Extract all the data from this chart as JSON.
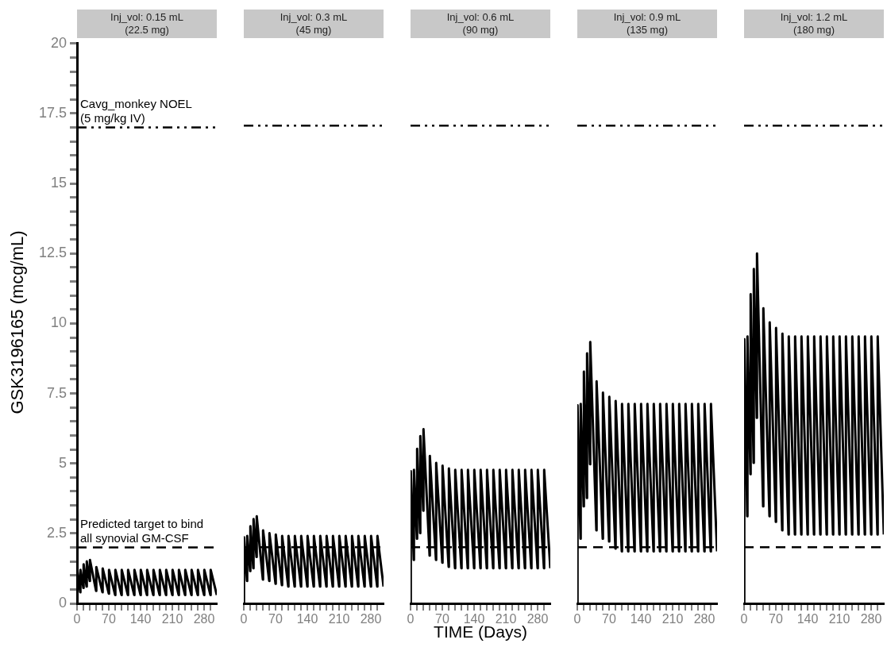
{
  "chart_data": [
    {
      "type": "line",
      "title": "Inj_vol: 0.15 mL\n(22.5 mg)",
      "ylabel": "GSK3196165 (mcg/mL)",
      "xlim": [
        0,
        308
      ],
      "ylim": [
        0,
        20
      ],
      "xticks": [
        0,
        {
          "value": 14,
          "label": null
        },
        {
          "value": 28,
          "label": null
        },
        {
          "value": 42,
          "label": null
        },
        {
          "value": 56,
          "label": null
        },
        70,
        {
          "value": 84,
          "label": null
        },
        {
          "value": 98,
          "label": null
        },
        {
          "value": 112,
          "label": null
        },
        {
          "value": 126,
          "label": null
        },
        140,
        {
          "value": 154,
          "label": null
        },
        {
          "value": 168,
          "label": null
        },
        {
          "value": 182,
          "label": null
        },
        {
          "value": 196,
          "label": null
        },
        210,
        {
          "value": 224,
          "label": null
        },
        {
          "value": 238,
          "label": null
        },
        {
          "value": 252,
          "label": null
        },
        {
          "value": 266,
          "label": null
        },
        280,
        {
          "value": 294,
          "label": null
        }
      ],
      "yticks": [
        0,
        {
          "value": 0.5,
          "label": null
        },
        {
          "value": 1,
          "label": null
        },
        {
          "value": 1.5,
          "label": null
        },
        {
          "value": 2,
          "label": null
        },
        2.5,
        {
          "value": 3,
          "label": null
        },
        {
          "value": 3.5,
          "label": null
        },
        {
          "value": 4,
          "label": null
        },
        {
          "value": 4.5,
          "label": null
        },
        5,
        {
          "value": 5.5,
          "label": null
        },
        {
          "value": 6,
          "label": null
        },
        {
          "value": 6.5,
          "label": null
        },
        {
          "value": 7,
          "label": null
        },
        7.5,
        {
          "value": 8,
          "label": null
        },
        {
          "value": 8.5,
          "label": null
        },
        {
          "value": 9,
          "label": null
        },
        {
          "value": 9.5,
          "label": null
        },
        10,
        {
          "value": 10.5,
          "label": null
        },
        {
          "value": 11,
          "label": null
        },
        {
          "value": 11.5,
          "label": null
        },
        {
          "value": 12,
          "label": null
        },
        12.5,
        {
          "value": 13,
          "label": null
        },
        {
          "value": 13.5,
          "label": null
        },
        {
          "value": 14,
          "label": null
        },
        {
          "value": 14.5,
          "label": null
        },
        15,
        {
          "value": 15.5,
          "label": null
        },
        {
          "value": 16,
          "label": null
        },
        {
          "value": 16.5,
          "label": null
        },
        {
          "value": 17,
          "label": null
        },
        17.5,
        {
          "value": 18,
          "label": null
        },
        {
          "value": 18.5,
          "label": null
        },
        {
          "value": 19,
          "label": null
        },
        {
          "value": 19.5,
          "label": null
        },
        20
      ],
      "x": [
        0,
        0.5,
        7,
        7.5,
        14,
        14.5,
        21,
        21.5,
        28,
        28.5,
        42,
        42.5,
        56,
        56.5,
        70,
        70.5,
        84,
        84.5,
        98,
        98.5,
        112,
        112.5,
        126,
        126.5,
        140,
        140.5,
        154,
        154.5,
        168,
        168.5,
        182,
        182.5,
        196,
        196.5,
        210,
        210.5,
        224,
        224.5,
        238,
        238.5,
        252,
        252.5,
        266,
        266.5,
        280,
        280.5,
        294,
        294.5,
        308
      ],
      "series": [
        {
          "color": "#000000",
          "values": [
            0,
            1.2,
            0.4,
            1.2,
            0.55,
            1.4,
            0.6,
            1.5,
            0.8,
            1.55,
            0.45,
            1.3,
            0.4,
            1.25,
            0.35,
            1.2,
            0.3,
            1.2,
            0.3,
            1.2,
            0.3,
            1.2,
            0.3,
            1.2,
            0.3,
            1.2,
            0.3,
            1.2,
            0.3,
            1.2,
            0.3,
            1.2,
            0.3,
            1.2,
            0.3,
            1.2,
            0.3,
            1.2,
            0.3,
            1.2,
            0.3,
            1.2,
            0.3,
            1.2,
            0.3,
            1.2,
            0.3,
            1.2,
            0.3
          ]
        }
      ],
      "ref_lines": [
        {
          "axis": "y",
          "value": 17,
          "label": "Cavg_monkey NOEL\n(5 mg/kg IV)",
          "color": "#000000",
          "line_style": "dashdot"
        },
        {
          "axis": "y",
          "value": 2,
          "label": "Predicted target to bind\nall synovial GM-CSF",
          "color": "#000000",
          "line_style": "dashed"
        }
      ],
      "marker": "none"
    },
    {
      "type": "line",
      "title": "Inj_vol: 0.3 mL\n(45 mg)",
      "xlim": [
        0,
        308
      ],
      "ylim": [
        0,
        20
      ],
      "tick_labels": "x",
      "xticks": [
        0,
        {
          "value": 14,
          "label": null
        },
        {
          "value": 28,
          "label": null
        },
        {
          "value": 42,
          "label": null
        },
        {
          "value": 56,
          "label": null
        },
        70,
        {
          "value": 84,
          "label": null
        },
        {
          "value": 98,
          "label": null
        },
        {
          "value": 112,
          "label": null
        },
        {
          "value": 126,
          "label": null
        },
        140,
        {
          "value": 154,
          "label": null
        },
        {
          "value": 168,
          "label": null
        },
        {
          "value": 182,
          "label": null
        },
        {
          "value": 196,
          "label": null
        },
        210,
        {
          "value": 224,
          "label": null
        },
        {
          "value": 238,
          "label": null
        },
        {
          "value": 252,
          "label": null
        },
        {
          "value": 266,
          "label": null
        },
        280,
        {
          "value": 294,
          "label": null
        }
      ],
      "yticks": [
        0,
        2.5,
        5,
        7.5,
        10,
        12.5,
        15,
        17.5,
        20
      ],
      "x": [
        0,
        0.5,
        7,
        7.5,
        14,
        14.5,
        21,
        21.5,
        28,
        28.5,
        42,
        42.5,
        56,
        56.5,
        70,
        70.5,
        84,
        84.5,
        98,
        98.5,
        112,
        112.5,
        126,
        126.5,
        140,
        140.5,
        154,
        154.5,
        168,
        168.5,
        182,
        182.5,
        196,
        196.5,
        210,
        210.5,
        224,
        224.5,
        238,
        238.5,
        252,
        252.5,
        266,
        266.5,
        280,
        280.5,
        294,
        294.5,
        308
      ],
      "series": [
        {
          "color": "#000000",
          "values": [
            0,
            2.35,
            0.8,
            2.4,
            1.15,
            2.75,
            1.25,
            3.0,
            1.65,
            3.1,
            0.85,
            2.6,
            0.8,
            2.5,
            0.7,
            2.45,
            0.65,
            2.4,
            0.6,
            2.4,
            0.6,
            2.4,
            0.6,
            2.4,
            0.6,
            2.4,
            0.6,
            2.4,
            0.6,
            2.4,
            0.6,
            2.4,
            0.6,
            2.4,
            0.6,
            2.4,
            0.6,
            2.4,
            0.6,
            2.4,
            0.6,
            2.4,
            0.6,
            2.4,
            0.6,
            2.4,
            0.6,
            2.4,
            0.6
          ]
        }
      ],
      "ref_lines": [
        {
          "axis": "y",
          "value": 17,
          "color": "#000000",
          "line_style": "dashdot"
        },
        {
          "axis": "y",
          "value": 2,
          "color": "#000000",
          "line_style": "dashed"
        }
      ],
      "marker": "none"
    },
    {
      "type": "line",
      "title": "Inj_vol: 0.6 mL\n(90 mg)",
      "xlabel": "TIME (Days)",
      "xlim": [
        0,
        308
      ],
      "ylim": [
        0,
        20
      ],
      "tick_labels": "x",
      "xticks": [
        0,
        {
          "value": 14,
          "label": null
        },
        {
          "value": 28,
          "label": null
        },
        {
          "value": 42,
          "label": null
        },
        {
          "value": 56,
          "label": null
        },
        70,
        {
          "value": 84,
          "label": null
        },
        {
          "value": 98,
          "label": null
        },
        {
          "value": 112,
          "label": null
        },
        {
          "value": 126,
          "label": null
        },
        140,
        {
          "value": 154,
          "label": null
        },
        {
          "value": 168,
          "label": null
        },
        {
          "value": 182,
          "label": null
        },
        {
          "value": 196,
          "label": null
        },
        210,
        {
          "value": 224,
          "label": null
        },
        {
          "value": 238,
          "label": null
        },
        {
          "value": 252,
          "label": null
        },
        {
          "value": 266,
          "label": null
        },
        280,
        {
          "value": 294,
          "label": null
        }
      ],
      "yticks": [
        0,
        2.5,
        5,
        7.5,
        10,
        12.5,
        15,
        17.5,
        20
      ],
      "x": [
        0,
        0.5,
        7,
        7.5,
        14,
        14.5,
        21,
        21.5,
        28,
        28.5,
        42,
        42.5,
        56,
        56.5,
        70,
        70.5,
        84,
        84.5,
        98,
        98.5,
        112,
        112.5,
        126,
        126.5,
        140,
        140.5,
        154,
        154.5,
        168,
        168.5,
        182,
        182.5,
        196,
        196.5,
        210,
        210.5,
        224,
        224.5,
        238,
        238.5,
        252,
        252.5,
        266,
        266.5,
        280,
        280.5,
        294,
        294.5,
        308
      ],
      "series": [
        {
          "color": "#000000",
          "values": [
            0,
            4.7,
            1.55,
            4.75,
            2.3,
            5.5,
            2.5,
            5.95,
            3.3,
            6.2,
            1.7,
            5.25,
            1.55,
            5.0,
            1.45,
            4.9,
            1.3,
            4.8,
            1.25,
            4.75,
            1.25,
            4.75,
            1.25,
            4.75,
            1.25,
            4.75,
            1.25,
            4.75,
            1.25,
            4.75,
            1.25,
            4.75,
            1.25,
            4.75,
            1.25,
            4.75,
            1.25,
            4.75,
            1.25,
            4.75,
            1.25,
            4.75,
            1.25,
            4.75,
            1.25,
            4.75,
            1.25,
            4.75,
            1.25
          ]
        }
      ],
      "ref_lines": [
        {
          "axis": "y",
          "value": 17,
          "color": "#000000",
          "line_style": "dashdot"
        },
        {
          "axis": "y",
          "value": 2,
          "color": "#000000",
          "line_style": "dashed"
        }
      ],
      "marker": "none"
    },
    {
      "type": "line",
      "title": "Inj_vol: 0.9 mL\n(135 mg)",
      "xlim": [
        0,
        308
      ],
      "ylim": [
        0,
        20
      ],
      "tick_labels": "x",
      "xticks": [
        0,
        {
          "value": 14,
          "label": null
        },
        {
          "value": 28,
          "label": null
        },
        {
          "value": 42,
          "label": null
        },
        {
          "value": 56,
          "label": null
        },
        70,
        {
          "value": 84,
          "label": null
        },
        {
          "value": 98,
          "label": null
        },
        {
          "value": 112,
          "label": null
        },
        {
          "value": 126,
          "label": null
        },
        140,
        {
          "value": 154,
          "label": null
        },
        {
          "value": 168,
          "label": null
        },
        {
          "value": 182,
          "label": null
        },
        {
          "value": 196,
          "label": null
        },
        210,
        {
          "value": 224,
          "label": null
        },
        {
          "value": 238,
          "label": null
        },
        {
          "value": 252,
          "label": null
        },
        {
          "value": 266,
          "label": null
        },
        280,
        {
          "value": 294,
          "label": null
        }
      ],
      "yticks": [
        0,
        2.5,
        5,
        7.5,
        10,
        12.5,
        15,
        17.5,
        20
      ],
      "x": [
        0,
        0.5,
        7,
        7.5,
        14,
        14.5,
        21,
        21.5,
        28,
        28.5,
        42,
        42.5,
        56,
        56.5,
        70,
        70.5,
        84,
        84.5,
        98,
        98.5,
        112,
        112.5,
        126,
        126.5,
        140,
        140.5,
        154,
        154.5,
        168,
        168.5,
        182,
        182.5,
        196,
        196.5,
        210,
        210.5,
        224,
        224.5,
        238,
        238.5,
        252,
        252.5,
        266,
        266.5,
        280,
        280.5,
        294,
        294.5,
        308
      ],
      "series": [
        {
          "color": "#000000",
          "values": [
            0,
            7.05,
            2.3,
            7.1,
            3.45,
            8.25,
            3.75,
            8.9,
            4.95,
            9.3,
            2.6,
            7.9,
            2.3,
            7.5,
            2.2,
            7.35,
            1.95,
            7.2,
            1.85,
            7.1,
            1.85,
            7.1,
            1.85,
            7.1,
            1.85,
            7.1,
            1.85,
            7.1,
            1.85,
            7.1,
            1.85,
            7.1,
            1.85,
            7.1,
            1.85,
            7.1,
            1.85,
            7.1,
            1.85,
            7.1,
            1.85,
            7.1,
            1.85,
            7.1,
            1.85,
            7.1,
            1.85,
            7.1,
            1.85
          ]
        }
      ],
      "ref_lines": [
        {
          "axis": "y",
          "value": 17,
          "color": "#000000",
          "line_style": "dashdot"
        },
        {
          "axis": "y",
          "value": 2,
          "color": "#000000",
          "line_style": "dashed"
        }
      ],
      "marker": "none"
    },
    {
      "type": "line",
      "title": "Inj_vol: 1.2 mL\n(180 mg)",
      "xlim": [
        0,
        308
      ],
      "ylim": [
        0,
        20
      ],
      "tick_labels": "x",
      "xticks": [
        0,
        {
          "value": 14,
          "label": null
        },
        {
          "value": 28,
          "label": null
        },
        {
          "value": 42,
          "label": null
        },
        {
          "value": 56,
          "label": null
        },
        70,
        {
          "value": 84,
          "label": null
        },
        {
          "value": 98,
          "label": null
        },
        {
          "value": 112,
          "label": null
        },
        {
          "value": 126,
          "label": null
        },
        140,
        {
          "value": 154,
          "label": null
        },
        {
          "value": 168,
          "label": null
        },
        {
          "value": 182,
          "label": null
        },
        {
          "value": 196,
          "label": null
        },
        210,
        {
          "value": 224,
          "label": null
        },
        {
          "value": 238,
          "label": null
        },
        {
          "value": 252,
          "label": null
        },
        {
          "value": 266,
          "label": null
        },
        280,
        {
          "value": 294,
          "label": null
        }
      ],
      "yticks": [
        0,
        2.5,
        5,
        7.5,
        10,
        12.5,
        15,
        17.5,
        20
      ],
      "x": [
        0,
        0.5,
        7,
        7.5,
        14,
        14.5,
        21,
        21.5,
        28,
        28.5,
        42,
        42.5,
        56,
        56.5,
        70,
        70.5,
        84,
        84.5,
        98,
        98.5,
        112,
        112.5,
        126,
        126.5,
        140,
        140.5,
        154,
        154.5,
        168,
        168.5,
        182,
        182.5,
        196,
        196.5,
        210,
        210.5,
        224,
        224.5,
        238,
        238.5,
        252,
        252.5,
        266,
        266.5,
        280,
        280.5,
        294,
        294.5,
        308
      ],
      "series": [
        {
          "color": "#000000",
          "values": [
            0,
            9.4,
            3.1,
            9.5,
            4.6,
            11.0,
            5.0,
            11.9,
            6.6,
            12.45,
            3.45,
            10.5,
            3.1,
            10.0,
            2.9,
            9.8,
            2.6,
            9.6,
            2.45,
            9.5,
            2.45,
            9.5,
            2.45,
            9.5,
            2.45,
            9.5,
            2.45,
            9.5,
            2.45,
            9.5,
            2.45,
            9.5,
            2.45,
            9.5,
            2.45,
            9.5,
            2.45,
            9.5,
            2.45,
            9.5,
            2.45,
            9.5,
            2.45,
            9.5,
            2.45,
            9.5,
            2.45,
            9.5,
            2.45
          ]
        }
      ],
      "ref_lines": [
        {
          "axis": "y",
          "value": 17,
          "color": "#000000",
          "line_style": "dashdot"
        },
        {
          "axis": "y",
          "value": 2,
          "color": "#000000",
          "line_style": "dashed"
        }
      ],
      "marker": "none"
    }
  ]
}
